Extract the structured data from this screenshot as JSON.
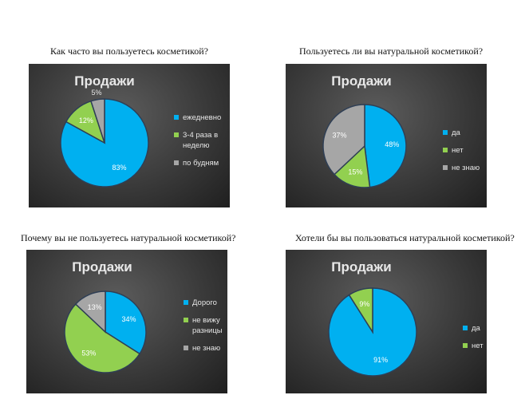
{
  "chart_data": [
    {
      "type": "pie",
      "question": "Как часто вы пользуетесь косметикой?",
      "title": "Продажи",
      "categories": [
        "ежедневно",
        "3-4 раза в неделю",
        "по будням"
      ],
      "values": [
        83,
        12,
        5
      ],
      "labels": [
        "83%",
        "12%",
        "5%"
      ],
      "colors": [
        "#00b0f0",
        "#92d050",
        "#a6a6a6"
      ],
      "legend_position": "right"
    },
    {
      "type": "pie",
      "question": "Пользуетесь ли вы натуральной косметикой?",
      "title": "Продажи",
      "categories": [
        "да",
        "нет",
        "не знаю"
      ],
      "values": [
        48,
        15,
        37
      ],
      "labels": [
        "48%",
        "15%",
        "37%"
      ],
      "colors": [
        "#00b0f0",
        "#92d050",
        "#a6a6a6"
      ],
      "legend_position": "right"
    },
    {
      "type": "pie",
      "question": "Почему вы не пользуетесь натуральной косметикой?",
      "title": "Продажи",
      "categories": [
        "Дорого",
        "не вижу разницы",
        "не знаю"
      ],
      "values": [
        34,
        53,
        13
      ],
      "labels": [
        "34%",
        "53%",
        "13%"
      ],
      "colors": [
        "#00b0f0",
        "#92d050",
        "#a6a6a6"
      ],
      "legend_position": "right"
    },
    {
      "type": "pie",
      "question": "Хотели бы вы пользоваться натуральной косметикой?",
      "title": "Продажи",
      "categories": [
        "да",
        "нет"
      ],
      "values": [
        91,
        9
      ],
      "labels": [
        "91%",
        "9%"
      ],
      "colors": [
        "#00b0f0",
        "#92d050"
      ],
      "legend_position": "right"
    }
  ]
}
